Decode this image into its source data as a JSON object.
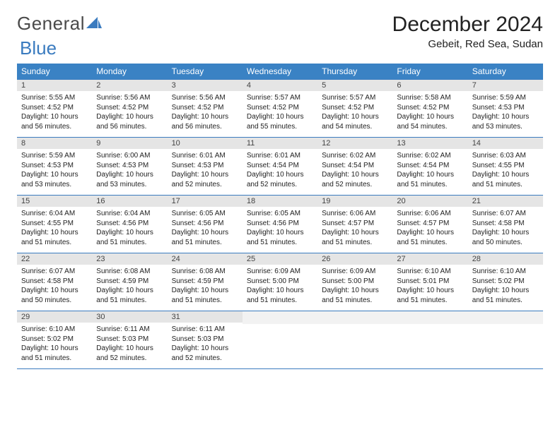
{
  "brand": {
    "part1": "General",
    "part2": "Blue"
  },
  "title": "December 2024",
  "location": "Gebeit, Red Sea, Sudan",
  "colors": {
    "header_bg": "#3a82c4",
    "header_text": "#ffffff",
    "rule": "#3a7bbf",
    "daynum_bg": "#e5e5e5",
    "brand_blue": "#3a7bbf",
    "text": "#222222",
    "body_bg": "#ffffff"
  },
  "typography": {
    "title_fontsize": 30,
    "location_fontsize": 15,
    "dayheader_fontsize": 12,
    "body_fontsize": 10
  },
  "calendar": {
    "type": "table",
    "day_headers": [
      "Sunday",
      "Monday",
      "Tuesday",
      "Wednesday",
      "Thursday",
      "Friday",
      "Saturday"
    ],
    "weeks": [
      [
        {
          "n": "1",
          "sunrise": "5:55 AM",
          "sunset": "4:52 PM",
          "daylight": "10 hours and 56 minutes."
        },
        {
          "n": "2",
          "sunrise": "5:56 AM",
          "sunset": "4:52 PM",
          "daylight": "10 hours and 56 minutes."
        },
        {
          "n": "3",
          "sunrise": "5:56 AM",
          "sunset": "4:52 PM",
          "daylight": "10 hours and 56 minutes."
        },
        {
          "n": "4",
          "sunrise": "5:57 AM",
          "sunset": "4:52 PM",
          "daylight": "10 hours and 55 minutes."
        },
        {
          "n": "5",
          "sunrise": "5:57 AM",
          "sunset": "4:52 PM",
          "daylight": "10 hours and 54 minutes."
        },
        {
          "n": "6",
          "sunrise": "5:58 AM",
          "sunset": "4:52 PM",
          "daylight": "10 hours and 54 minutes."
        },
        {
          "n": "7",
          "sunrise": "5:59 AM",
          "sunset": "4:53 PM",
          "daylight": "10 hours and 53 minutes."
        }
      ],
      [
        {
          "n": "8",
          "sunrise": "5:59 AM",
          "sunset": "4:53 PM",
          "daylight": "10 hours and 53 minutes."
        },
        {
          "n": "9",
          "sunrise": "6:00 AM",
          "sunset": "4:53 PM",
          "daylight": "10 hours and 53 minutes."
        },
        {
          "n": "10",
          "sunrise": "6:01 AM",
          "sunset": "4:53 PM",
          "daylight": "10 hours and 52 minutes."
        },
        {
          "n": "11",
          "sunrise": "6:01 AM",
          "sunset": "4:54 PM",
          "daylight": "10 hours and 52 minutes."
        },
        {
          "n": "12",
          "sunrise": "6:02 AM",
          "sunset": "4:54 PM",
          "daylight": "10 hours and 52 minutes."
        },
        {
          "n": "13",
          "sunrise": "6:02 AM",
          "sunset": "4:54 PM",
          "daylight": "10 hours and 51 minutes."
        },
        {
          "n": "14",
          "sunrise": "6:03 AM",
          "sunset": "4:55 PM",
          "daylight": "10 hours and 51 minutes."
        }
      ],
      [
        {
          "n": "15",
          "sunrise": "6:04 AM",
          "sunset": "4:55 PM",
          "daylight": "10 hours and 51 minutes."
        },
        {
          "n": "16",
          "sunrise": "6:04 AM",
          "sunset": "4:56 PM",
          "daylight": "10 hours and 51 minutes."
        },
        {
          "n": "17",
          "sunrise": "6:05 AM",
          "sunset": "4:56 PM",
          "daylight": "10 hours and 51 minutes."
        },
        {
          "n": "18",
          "sunrise": "6:05 AM",
          "sunset": "4:56 PM",
          "daylight": "10 hours and 51 minutes."
        },
        {
          "n": "19",
          "sunrise": "6:06 AM",
          "sunset": "4:57 PM",
          "daylight": "10 hours and 51 minutes."
        },
        {
          "n": "20",
          "sunrise": "6:06 AM",
          "sunset": "4:57 PM",
          "daylight": "10 hours and 51 minutes."
        },
        {
          "n": "21",
          "sunrise": "6:07 AM",
          "sunset": "4:58 PM",
          "daylight": "10 hours and 50 minutes."
        }
      ],
      [
        {
          "n": "22",
          "sunrise": "6:07 AM",
          "sunset": "4:58 PM",
          "daylight": "10 hours and 50 minutes."
        },
        {
          "n": "23",
          "sunrise": "6:08 AM",
          "sunset": "4:59 PM",
          "daylight": "10 hours and 51 minutes."
        },
        {
          "n": "24",
          "sunrise": "6:08 AM",
          "sunset": "4:59 PM",
          "daylight": "10 hours and 51 minutes."
        },
        {
          "n": "25",
          "sunrise": "6:09 AM",
          "sunset": "5:00 PM",
          "daylight": "10 hours and 51 minutes."
        },
        {
          "n": "26",
          "sunrise": "6:09 AM",
          "sunset": "5:00 PM",
          "daylight": "10 hours and 51 minutes."
        },
        {
          "n": "27",
          "sunrise": "6:10 AM",
          "sunset": "5:01 PM",
          "daylight": "10 hours and 51 minutes."
        },
        {
          "n": "28",
          "sunrise": "6:10 AM",
          "sunset": "5:02 PM",
          "daylight": "10 hours and 51 minutes."
        }
      ],
      [
        {
          "n": "29",
          "sunrise": "6:10 AM",
          "sunset": "5:02 PM",
          "daylight": "10 hours and 51 minutes."
        },
        {
          "n": "30",
          "sunrise": "6:11 AM",
          "sunset": "5:03 PM",
          "daylight": "10 hours and 52 minutes."
        },
        {
          "n": "31",
          "sunrise": "6:11 AM",
          "sunset": "5:03 PM",
          "daylight": "10 hours and 52 minutes."
        },
        null,
        null,
        null,
        null
      ]
    ]
  },
  "labels": {
    "sunrise": "Sunrise: ",
    "sunset": "Sunset: ",
    "daylight": "Daylight: "
  }
}
